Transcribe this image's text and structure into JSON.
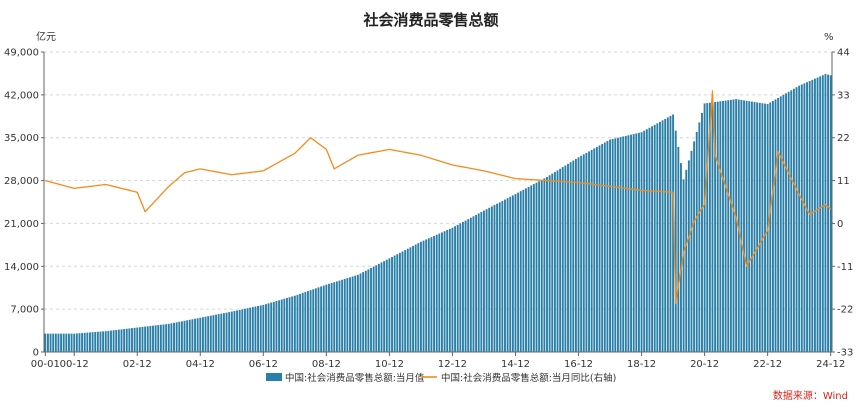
{
  "chart_data": {
    "type": "bar+line",
    "title": "社会消费品零售总额",
    "left_unit": "亿元",
    "right_unit": "%",
    "source": "数据来源：Wind",
    "colors": {
      "bar": "#2a7fa8",
      "line": "#f28c1c"
    },
    "y_left": {
      "min": 0,
      "max": 49000,
      "ticks": [
        "0",
        "7,000",
        "14,000",
        "21,000",
        "28,000",
        "35,000",
        "42,000",
        "49,000"
      ]
    },
    "y_right": {
      "min": -33,
      "max": 44,
      "ticks": [
        "-33",
        "-22",
        "-11",
        "0",
        "11",
        "22",
        "33",
        "44"
      ]
    },
    "x_ticks": [
      "00-01",
      "00-12",
      "02-12",
      "04-12",
      "06-12",
      "08-12",
      "10-12",
      "12-12",
      "14-12",
      "16-12",
      "18-12",
      "20-12",
      "22-12",
      "24-12"
    ],
    "grid": true,
    "legend": "bottom-center",
    "series": [
      {
        "name": "中国:社会消费品零售总额:当月值",
        "type": "bar",
        "axis": "left",
        "anchors": [
          [
            "2000-01",
            3000
          ],
          [
            "2000-12",
            3000
          ],
          [
            "2001-12",
            3400
          ],
          [
            "2002-12",
            4000
          ],
          [
            "2003-12",
            4600
          ],
          [
            "2004-12",
            5600
          ],
          [
            "2005-12",
            6600
          ],
          [
            "2006-12",
            7700
          ],
          [
            "2007-12",
            9200
          ],
          [
            "2008-12",
            11000
          ],
          [
            "2009-12",
            12600
          ],
          [
            "2010-12",
            15300
          ],
          [
            "2011-12",
            18000
          ],
          [
            "2012-12",
            20300
          ],
          [
            "2013-12",
            23100
          ],
          [
            "2014-12",
            25800
          ],
          [
            "2015-12",
            28600
          ],
          [
            "2016-12",
            31800
          ],
          [
            "2017-12",
            34700
          ],
          [
            "2018-12",
            35900
          ],
          [
            "2019-12",
            38800
          ],
          [
            "2020-04",
            28200
          ],
          [
            "2020-12",
            40600
          ],
          [
            "2021-12",
            41300
          ],
          [
            "2022-12",
            40500
          ],
          [
            "2023-12",
            43500
          ],
          [
            "2024-10",
            45400
          ],
          [
            "2024-12",
            45200
          ]
        ]
      },
      {
        "name": "中国:社会消费品零售总额:当月同比(右轴)",
        "type": "line",
        "axis": "right",
        "anchors": [
          [
            "2000-01",
            11.0
          ],
          [
            "2000-12",
            9.0
          ],
          [
            "2001-12",
            10.0
          ],
          [
            "2002-12",
            8.0
          ],
          [
            "2003-03",
            3.0
          ],
          [
            "2003-12",
            9.5
          ],
          [
            "2004-06",
            13.0
          ],
          [
            "2004-12",
            14.0
          ],
          [
            "2005-12",
            12.5
          ],
          [
            "2006-12",
            13.5
          ],
          [
            "2007-12",
            18.0
          ],
          [
            "2008-06",
            22.0
          ],
          [
            "2008-12",
            19.0
          ],
          [
            "2009-03",
            14.0
          ],
          [
            "2009-12",
            17.5
          ],
          [
            "2010-12",
            19.0
          ],
          [
            "2011-12",
            17.5
          ],
          [
            "2012-12",
            15.0
          ],
          [
            "2013-12",
            13.5
          ],
          [
            "2014-12",
            11.5
          ],
          [
            "2015-12",
            11.0
          ],
          [
            "2016-12",
            10.5
          ],
          [
            "2017-12",
            9.5
          ],
          [
            "2018-12",
            8.5
          ],
          [
            "2019-12",
            8.0
          ],
          [
            "2020-01",
            -20.5
          ],
          [
            "2020-04",
            -7.5
          ],
          [
            "2020-08",
            0.5
          ],
          [
            "2020-12",
            5.0
          ],
          [
            "2021-03",
            34.0
          ],
          [
            "2021-04",
            17.5
          ],
          [
            "2021-12",
            1.5
          ],
          [
            "2022-04",
            -11.0
          ],
          [
            "2022-12",
            -1.8
          ],
          [
            "2023-04",
            18.4
          ],
          [
            "2023-12",
            7.4
          ],
          [
            "2024-04",
            2.3
          ],
          [
            "2024-10",
            4.8
          ],
          [
            "2024-12",
            3.7
          ]
        ]
      }
    ]
  }
}
